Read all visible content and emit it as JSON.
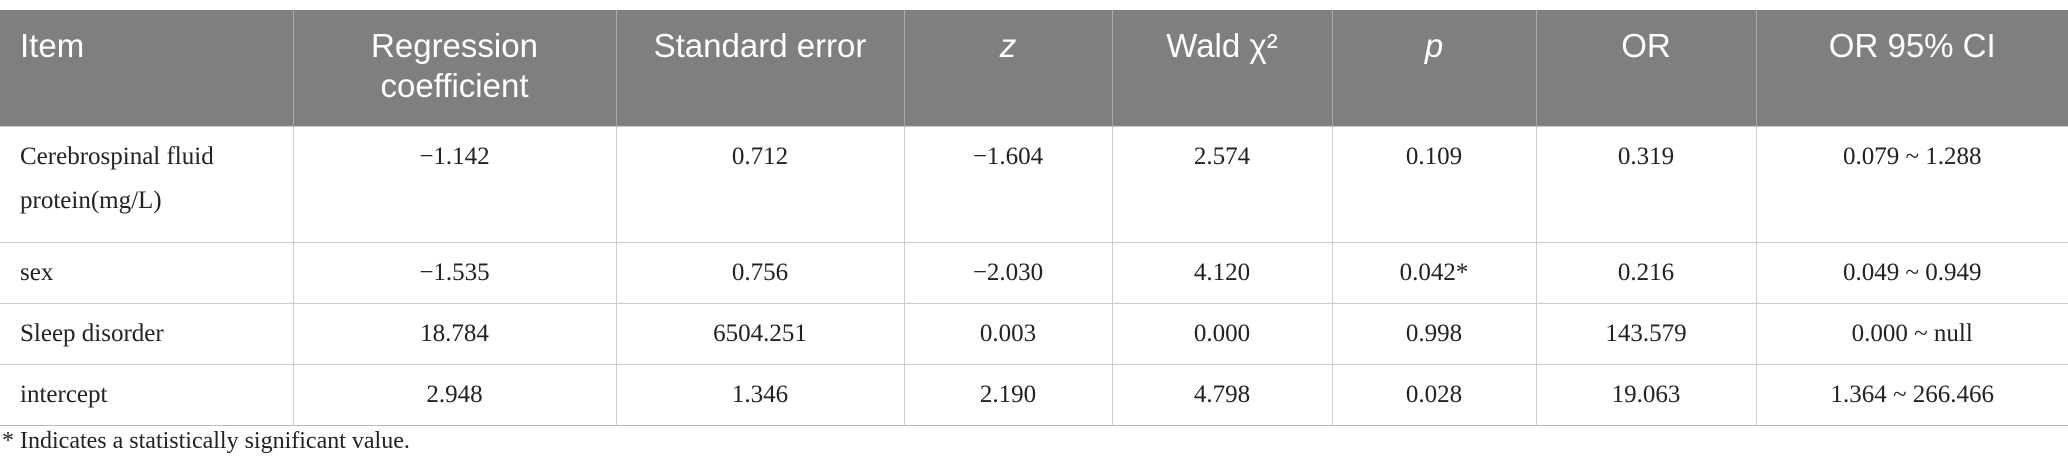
{
  "table": {
    "header": [
      "Item",
      "Regression coefficient",
      "Standard error",
      "z",
      "Wald χ²",
      "p",
      "OR",
      "OR 95% CI"
    ],
    "rows": [
      [
        "Cerebrospinal fluid protein(mg/L)",
        "−1.142",
        "0.712",
        "−1.604",
        "2.574",
        "0.109",
        "0.319",
        "0.079 ~ 1.288"
      ],
      [
        "sex",
        "−1.535",
        "0.756",
        "−2.030",
        "4.120",
        "0.042*",
        "0.216",
        "0.049 ~ 0.949"
      ],
      [
        "Sleep disorder",
        "18.784",
        "6504.251",
        "0.003",
        "0.000",
        "0.998",
        "143.579",
        "0.000 ~ null"
      ],
      [
        "intercept",
        "2.948",
        "1.346",
        "2.190",
        "4.798",
        "0.028",
        "19.063",
        "1.364 ~ 266.466"
      ]
    ]
  },
  "footnote": "* Indicates a statistically significant value."
}
